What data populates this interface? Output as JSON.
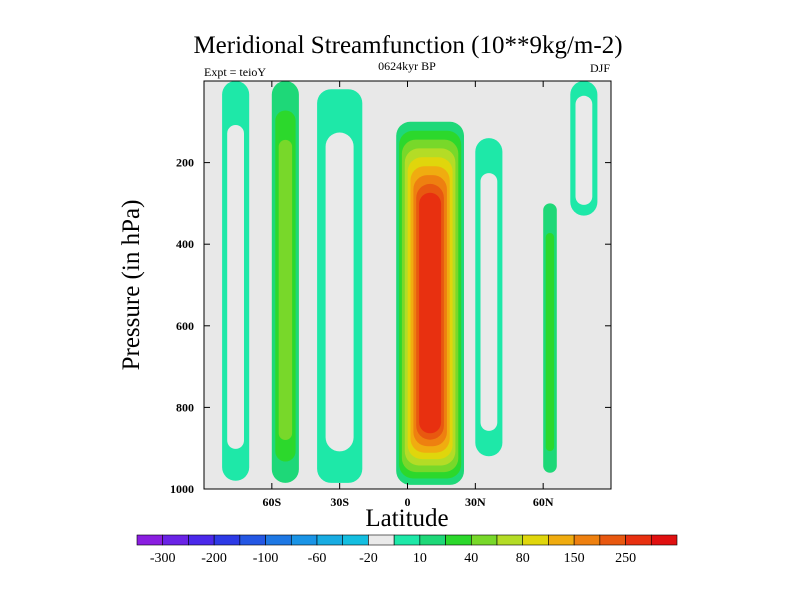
{
  "chart_data": {
    "type": "heatmap",
    "title": "Meridional Streamfunction (10**9kg/m-2)",
    "left_string": "Expt = teioY",
    "center_string": "0624kyr BP",
    "right_string": "DJF",
    "xlabel": "Latitude",
    "ylabel": "Pressure (in hPa)",
    "xlim": [
      -90,
      90
    ],
    "ylim": [
      0,
      1000
    ],
    "y_inverted": true,
    "x_ticks": [
      {
        "value": -60,
        "label": "60S"
      },
      {
        "value": -30,
        "label": "30S"
      },
      {
        "value": 0,
        "label": "0"
      },
      {
        "value": 30,
        "label": "30N"
      },
      {
        "value": 60,
        "label": "60N"
      }
    ],
    "y_ticks": [
      {
        "value": 200,
        "label": "200"
      },
      {
        "value": 400,
        "label": "400"
      },
      {
        "value": 600,
        "label": "600"
      },
      {
        "value": 800,
        "label": "800"
      },
      {
        "value": 1000,
        "label": "1000"
      }
    ],
    "colorbar": {
      "levels": [
        -300,
        -250,
        -200,
        -150,
        -100,
        -80,
        -60,
        -40,
        -20,
        -10,
        10,
        20,
        40,
        60,
        80,
        100,
        150,
        200,
        250,
        300
      ],
      "labels": [
        "-300",
        "-200",
        "-100",
        "-60",
        "-20",
        "10",
        "40",
        "80",
        "150",
        "250"
      ],
      "colors": [
        "#8a1ee0",
        "#6a23e6",
        "#4b28ea",
        "#2d3ae6",
        "#2457e4",
        "#1e78e4",
        "#1a94e6",
        "#18ace2",
        "#14bee0",
        "#eaeaea",
        "#1ee8a8",
        "#1ed878",
        "#2cd82c",
        "#78d82a",
        "#b4dc26",
        "#e0d60c",
        "#f0ac10",
        "#ee8010",
        "#e85810",
        "#e83010",
        "#e01010"
      ]
    },
    "field": {
      "background": "#e8e8e8",
      "features": [
        {
          "name": "south-polar-negative-cell",
          "lat": [
            -82,
            -70
          ],
          "pressure": [
            0,
            980
          ],
          "value": -20
        },
        {
          "name": "southern-midlat-positive-cell",
          "lat": [
            -60,
            -48
          ],
          "pressure": [
            0,
            985
          ],
          "value": 40
        },
        {
          "name": "southern-subtropical-negative-cell",
          "lat": [
            -40,
            -20
          ],
          "pressure": [
            20,
            985
          ],
          "value": -20
        },
        {
          "name": "tropical-hadley-cell",
          "lat": [
            -5,
            25
          ],
          "pressure": [
            100,
            990
          ],
          "value": 250
        },
        {
          "name": "northern-subtropical-negative-cell",
          "lat": [
            30,
            42
          ],
          "pressure": [
            140,
            920
          ],
          "value": -20
        },
        {
          "name": "northern-midlat-positive-cell",
          "lat": [
            60,
            66
          ],
          "pressure": [
            300,
            960
          ],
          "value": 20
        },
        {
          "name": "north-polar-negative-cell",
          "lat": [
            72,
            84
          ],
          "pressure": [
            0,
            330
          ],
          "value": -20
        }
      ]
    }
  }
}
